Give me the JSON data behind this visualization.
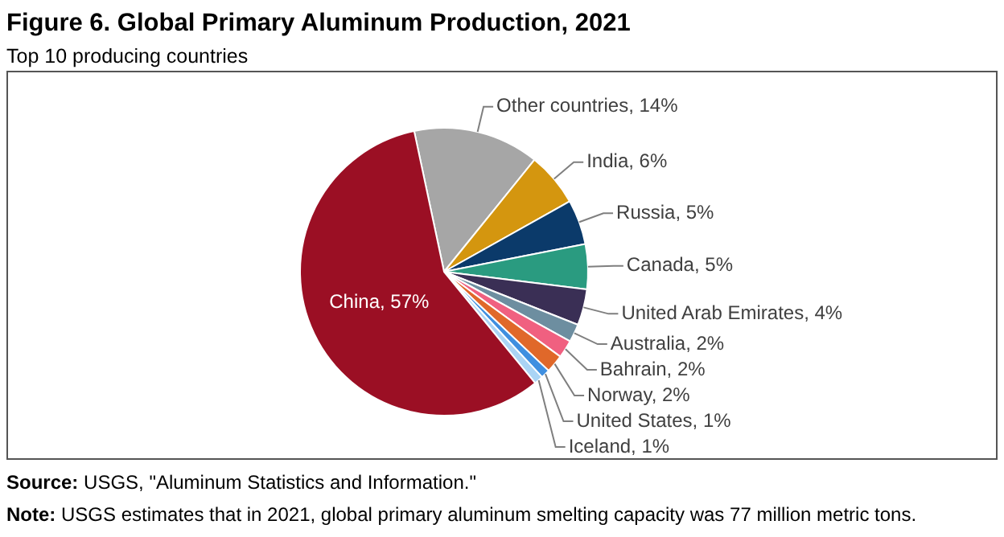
{
  "chart_data": {
    "type": "pie",
    "title": "Figure 6. Global Primary Aluminum Production, 2021",
    "subtitle": "Top 10 producing countries",
    "categories": [
      "Other countries",
      "India",
      "Russia",
      "Canada",
      "United Arab Emirates",
      "Australia",
      "Bahrain",
      "Norway",
      "United States",
      "Iceland",
      "China"
    ],
    "values": [
      14,
      6,
      5,
      5,
      4,
      2,
      2,
      2,
      1,
      1,
      57
    ],
    "value_labels": [
      "14%",
      "6%",
      "5%",
      "5%",
      "4%",
      "2%",
      "2%",
      "2%",
      "1%",
      "1%",
      "57%"
    ],
    "colors": [
      "#a6a6a6",
      "#d4960f",
      "#0b3a6a",
      "#2a9b80",
      "#3a2f55",
      "#6d8ea0",
      "#f06080",
      "#e0682a",
      "#3f8fe0",
      "#aad4f5",
      "#9b0f24"
    ],
    "legend": false,
    "annotations": [
      "Source: USGS, \"Aluminum Statistics and Information.\"",
      "Note: USGS estimates that in 2021, global primary aluminum smelting capacity was 77 million metric tons."
    ]
  }
}
